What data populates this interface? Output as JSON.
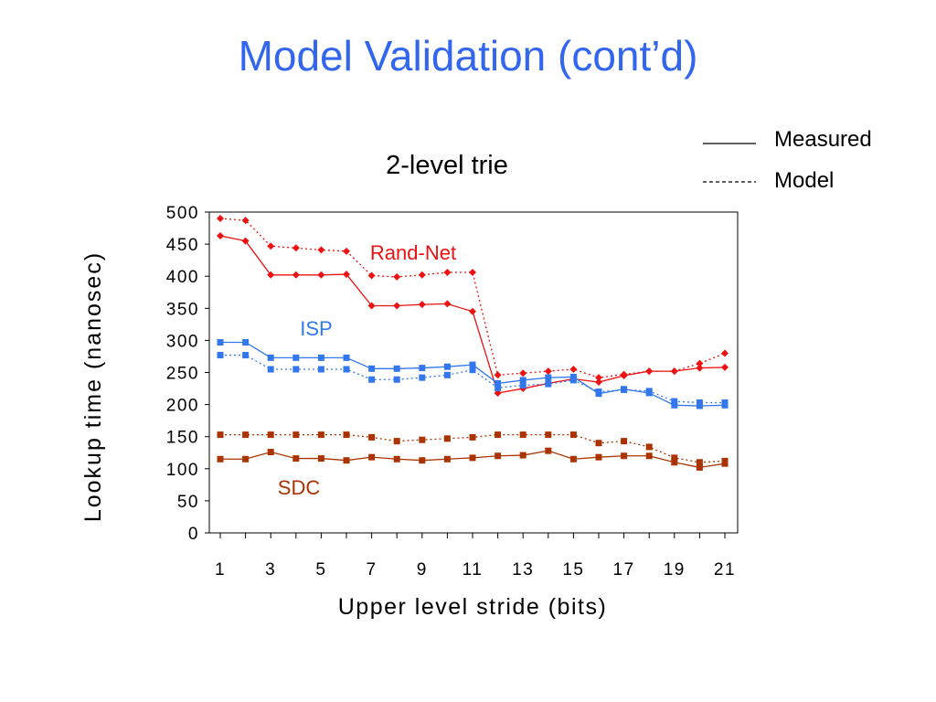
{
  "slide": {
    "title": "Model Validation (cont’d)"
  },
  "legend": {
    "measured": "Measured",
    "model": "Model"
  },
  "chart_data": {
    "type": "line",
    "title": "2-level trie",
    "xlabel": "Upper level stride (bits)",
    "ylabel": "Lookup time (nanosec)",
    "xlim": [
      1,
      21
    ],
    "ylim": [
      0,
      500
    ],
    "x_ticks": [
      1,
      3,
      5,
      7,
      9,
      11,
      13,
      15,
      17,
      19,
      21
    ],
    "y_ticks": [
      0,
      50,
      100,
      150,
      200,
      250,
      300,
      350,
      400,
      450,
      500
    ],
    "x": [
      1,
      2,
      3,
      4,
      5,
      6,
      7,
      8,
      9,
      10,
      11,
      12,
      13,
      14,
      15,
      16,
      17,
      18,
      19,
      20,
      21
    ],
    "legend_placement": "top-right",
    "grid": false,
    "series": [
      {
        "name": "Rand-Net",
        "kind": "measured",
        "color": "#ee1111",
        "marker": "diamond",
        "values": [
          463,
          455,
          402,
          402,
          402,
          403,
          354,
          354,
          356,
          357,
          345,
          218,
          225,
          233,
          240,
          235,
          245,
          252,
          252,
          257,
          258
        ]
      },
      {
        "name": "Rand-Net",
        "kind": "model",
        "color": "#ee1111",
        "marker": "diamond",
        "values": [
          490,
          487,
          447,
          444,
          441,
          439,
          401,
          399,
          402,
          406,
          406,
          246,
          249,
          252,
          255,
          242,
          247,
          252,
          252,
          264,
          280
        ]
      },
      {
        "name": "ISP",
        "kind": "measured",
        "color": "#3377ee",
        "marker": "square",
        "values": [
          297,
          297,
          273,
          273,
          273,
          273,
          256,
          256,
          257,
          259,
          262,
          233,
          238,
          242,
          243,
          217,
          224,
          218,
          199,
          198,
          199
        ]
      },
      {
        "name": "ISP",
        "kind": "model",
        "color": "#3377ee",
        "marker": "square",
        "values": [
          277,
          277,
          255,
          255,
          255,
          255,
          239,
          239,
          242,
          246,
          254,
          226,
          230,
          232,
          238,
          220,
          223,
          221,
          205,
          203,
          203
        ]
      },
      {
        "name": "SDC",
        "kind": "measured",
        "color": "#aa3300",
        "marker": "square",
        "values": [
          115,
          115,
          126,
          116,
          116,
          113,
          118,
          115,
          113,
          115,
          117,
          120,
          121,
          128,
          115,
          118,
          120,
          120,
          110,
          102,
          108
        ]
      },
      {
        "name": "SDC",
        "kind": "model",
        "color": "#aa3300",
        "marker": "square",
        "values": [
          153,
          153,
          153,
          153,
          153,
          153,
          149,
          143,
          145,
          147,
          149,
          153,
          153,
          153,
          153,
          140,
          143,
          134,
          117,
          110,
          112
        ]
      }
    ]
  }
}
